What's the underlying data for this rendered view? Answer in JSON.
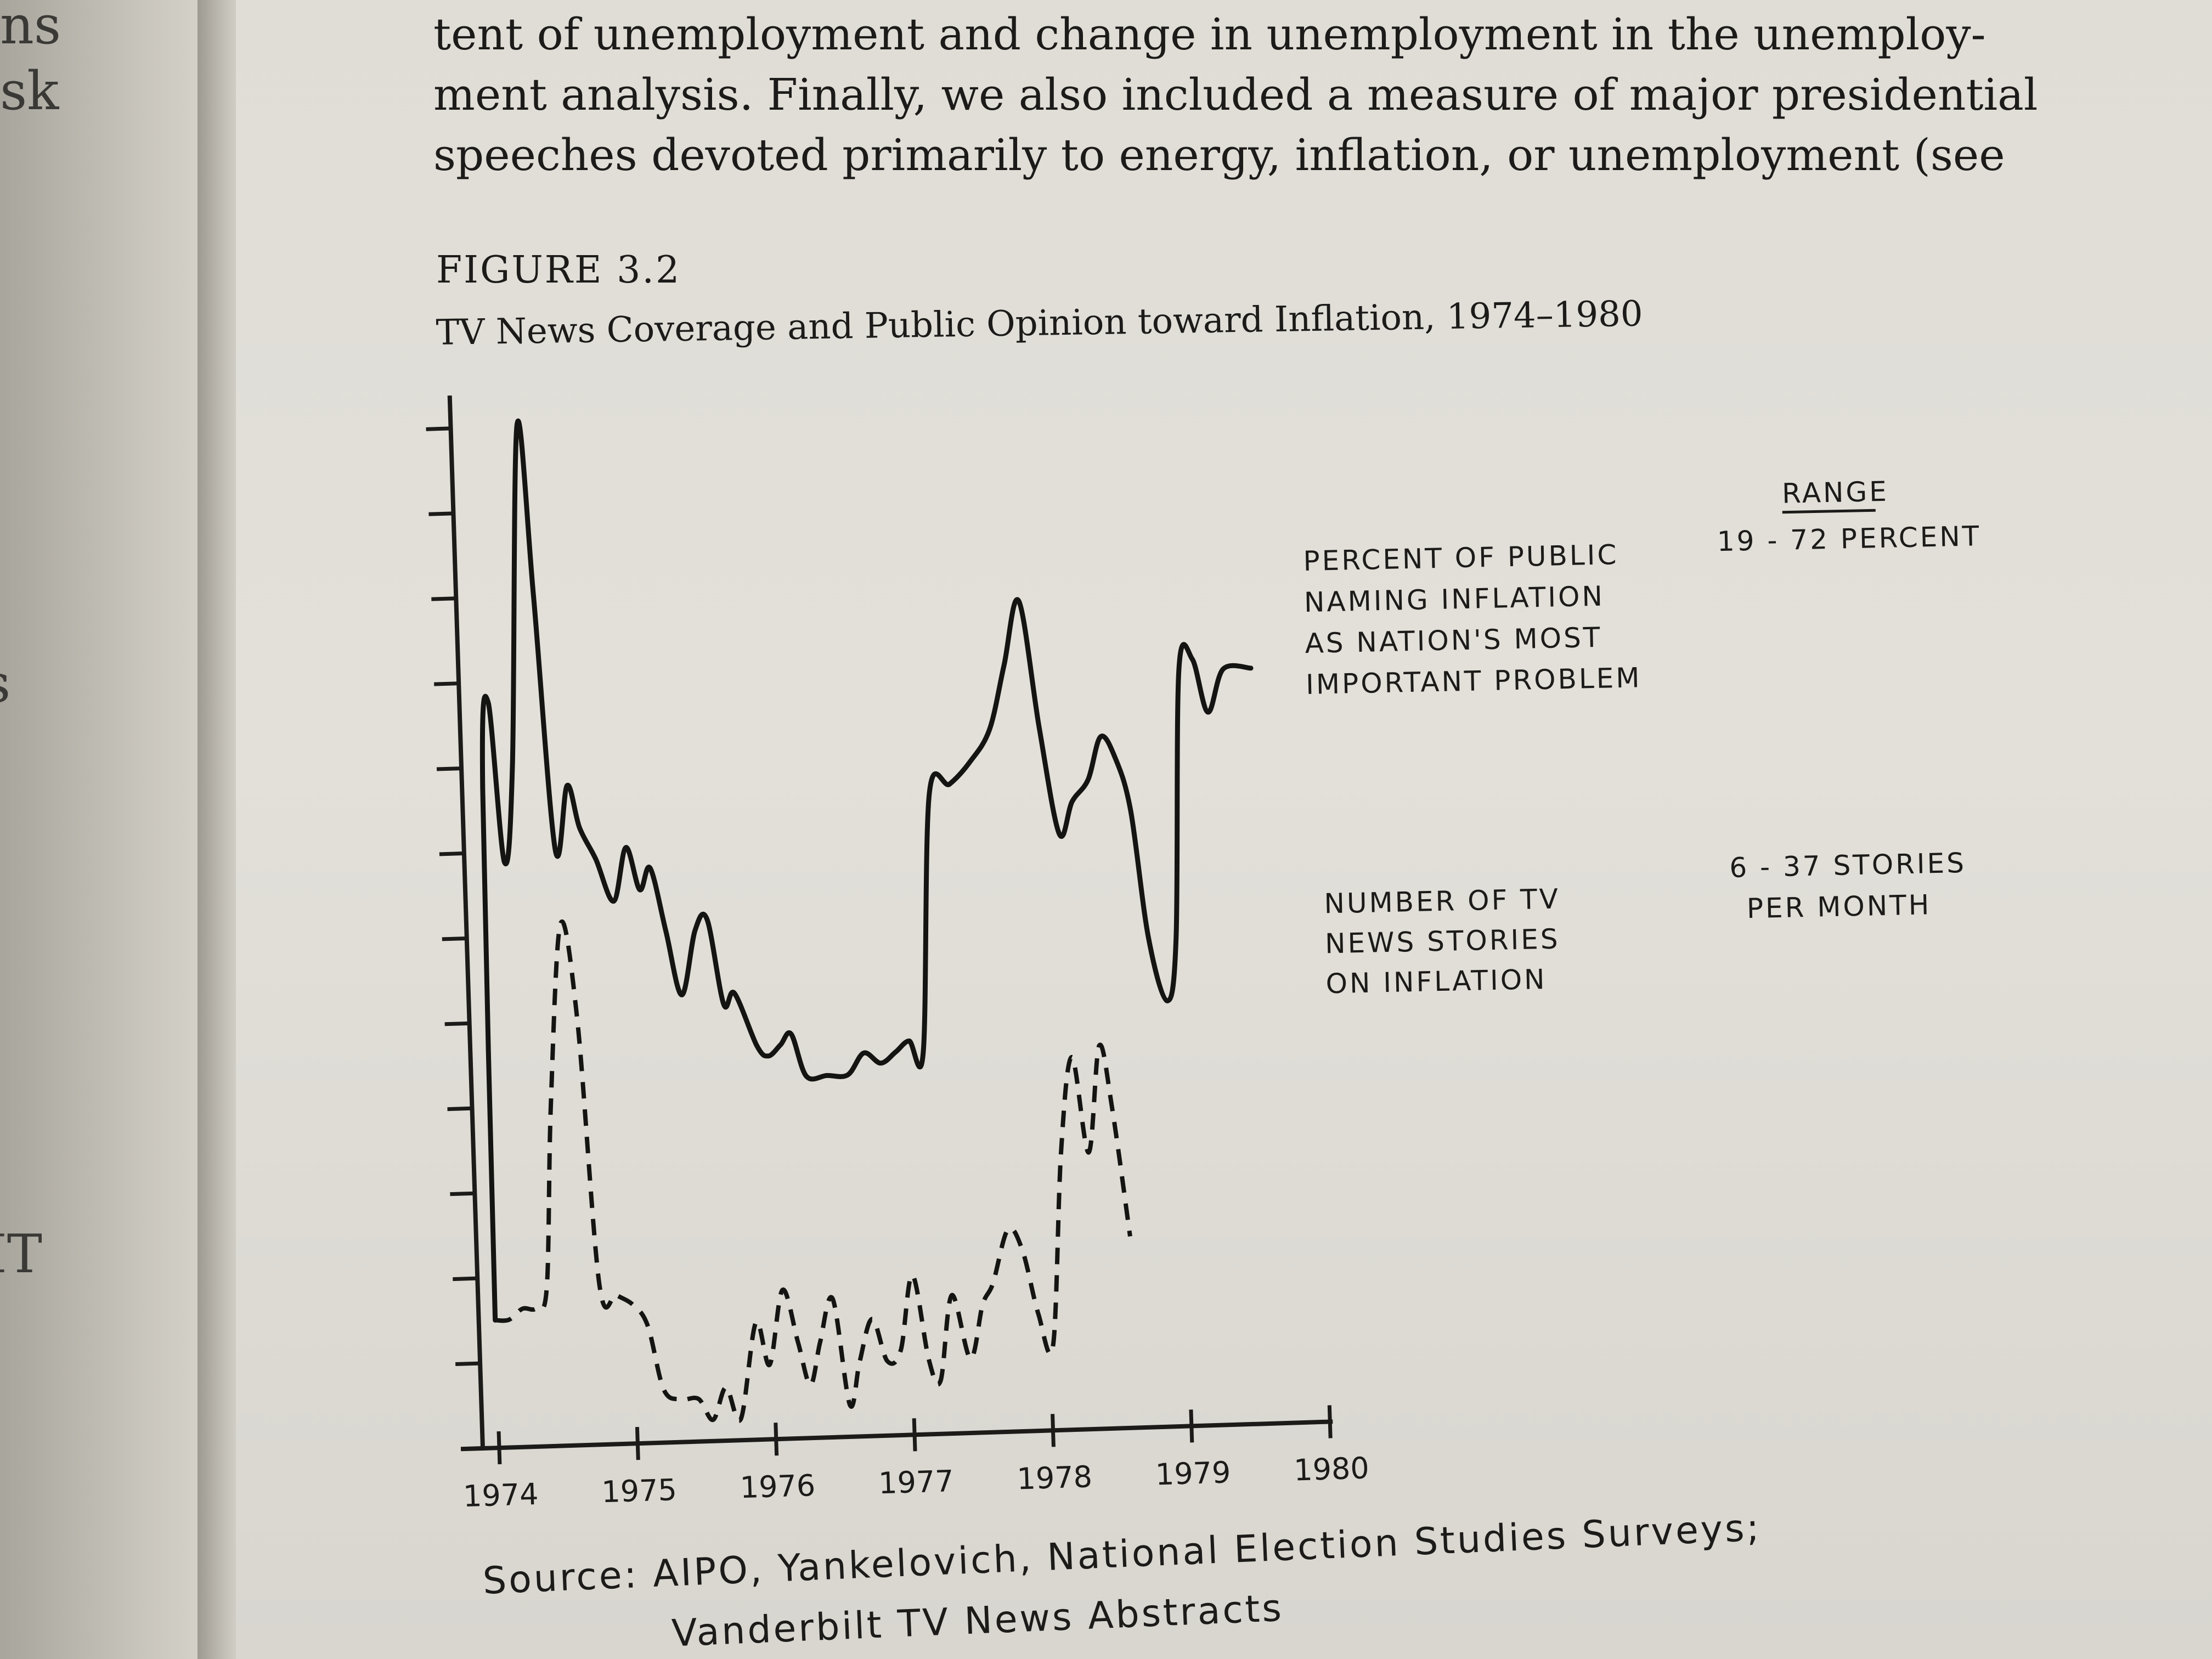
{
  "left_margin_fragments": [
    "ns",
    "sk",
    "s",
    "IT"
  ],
  "body_text": [
    "tent of unemployment and change in unemployment in the unemploy-",
    "ment analysis. Finally, we also included a measure of major presidential",
    "speeches devoted primarily to energy, inflation, or unemployment (see"
  ],
  "figure_label": "FIGURE 3.2",
  "figure_title": "TV News Coverage and Public Opinion toward Inflation, 1974–1980",
  "source_lines": [
    "Source: AIPO, Yankelovich, National Election Studies Surveys;",
    "Vanderbilt TV News Abstracts"
  ],
  "chart_data": {
    "type": "line",
    "x_ticks": [
      "1974",
      "1975",
      "1976",
      "1977",
      "1978",
      "1979",
      "1980"
    ],
    "xlim": [
      1974,
      1980
    ],
    "y_axis": {
      "labeled": false,
      "minor_ticks": 12
    },
    "grid": false,
    "range_header": "RANGE",
    "series": [
      {
        "name_lines": [
          "PERCENT OF PUBLIC",
          "NAMING INFLATION",
          "AS NATION'S MOST",
          "IMPORTANT PROBLEM"
        ],
        "range_lines": [
          "19 - 72 PERCENT"
        ],
        "style": "solid",
        "points": [
          [
            1974.0,
            0.12
          ],
          [
            1974.03,
            0.62
          ],
          [
            1974.09,
            0.7
          ],
          [
            1974.17,
            0.55
          ],
          [
            1974.25,
            0.64
          ],
          [
            1974.36,
            0.96
          ],
          [
            1974.44,
            0.8
          ],
          [
            1974.54,
            0.56
          ],
          [
            1974.64,
            0.62
          ],
          [
            1974.72,
            0.58
          ],
          [
            1974.83,
            0.55
          ],
          [
            1974.95,
            0.51
          ],
          [
            1975.05,
            0.56
          ],
          [
            1975.14,
            0.52
          ],
          [
            1975.22,
            0.54
          ],
          [
            1975.32,
            0.48
          ],
          [
            1975.42,
            0.42
          ],
          [
            1975.53,
            0.48
          ],
          [
            1975.62,
            0.49
          ],
          [
            1975.72,
            0.41
          ],
          [
            1975.8,
            0.42
          ],
          [
            1975.95,
            0.37
          ],
          [
            1976.03,
            0.36
          ],
          [
            1976.12,
            0.37
          ],
          [
            1976.2,
            0.38
          ],
          [
            1976.3,
            0.34
          ],
          [
            1976.45,
            0.34
          ],
          [
            1976.6,
            0.34
          ],
          [
            1976.72,
            0.36
          ],
          [
            1976.84,
            0.35
          ],
          [
            1976.95,
            0.36
          ],
          [
            1977.05,
            0.37
          ],
          [
            1977.15,
            0.36
          ],
          [
            1977.25,
            0.6
          ],
          [
            1977.4,
            0.61
          ],
          [
            1977.55,
            0.63
          ],
          [
            1977.7,
            0.66
          ],
          [
            1977.82,
            0.72
          ],
          [
            1977.94,
            0.78
          ],
          [
            1978.06,
            0.66
          ],
          [
            1978.18,
            0.56
          ],
          [
            1978.28,
            0.59
          ],
          [
            1978.4,
            0.61
          ],
          [
            1978.5,
            0.65
          ],
          [
            1978.6,
            0.63
          ],
          [
            1978.7,
            0.58
          ],
          [
            1978.8,
            0.46
          ],
          [
            1978.92,
            0.4
          ],
          [
            1979.0,
            0.46
          ],
          [
            1979.08,
            0.71
          ],
          [
            1979.18,
            0.72
          ],
          [
            1979.28,
            0.67
          ],
          [
            1979.4,
            0.71
          ],
          [
            1979.6,
            0.71
          ]
        ]
      },
      {
        "name_lines": [
          "NUMBER OF TV",
          "NEWS STORIES",
          "ON INFLATION"
        ],
        "range_lines": [
          "6 - 37 STORIES",
          "PER MONTH"
        ],
        "style": "dashed",
        "points": [
          [
            1974.0,
            0.12
          ],
          [
            1974.1,
            0.12
          ],
          [
            1974.2,
            0.13
          ],
          [
            1974.3,
            0.13
          ],
          [
            1974.38,
            0.15
          ],
          [
            1974.45,
            0.32
          ],
          [
            1974.56,
            0.49
          ],
          [
            1974.66,
            0.4
          ],
          [
            1974.76,
            0.15
          ],
          [
            1974.88,
            0.14
          ],
          [
            1975.0,
            0.13
          ],
          [
            1975.1,
            0.11
          ],
          [
            1975.2,
            0.05
          ],
          [
            1975.32,
            0.04
          ],
          [
            1975.45,
            0.04
          ],
          [
            1975.55,
            0.02
          ],
          [
            1975.65,
            0.05
          ],
          [
            1975.75,
            0.02
          ],
          [
            1975.88,
            0.11
          ],
          [
            1975.97,
            0.07
          ],
          [
            1976.08,
            0.14
          ],
          [
            1976.18,
            0.09
          ],
          [
            1976.26,
            0.05
          ],
          [
            1976.34,
            0.09
          ],
          [
            1976.44,
            0.13
          ],
          [
            1976.54,
            0.03
          ],
          [
            1976.62,
            0.07
          ],
          [
            1976.72,
            0.11
          ],
          [
            1976.82,
            0.07
          ],
          [
            1976.92,
            0.08
          ],
          [
            1977.02,
            0.15
          ],
          [
            1977.12,
            0.07
          ],
          [
            1977.2,
            0.05
          ],
          [
            1977.3,
            0.13
          ],
          [
            1977.42,
            0.07
          ],
          [
            1977.52,
            0.12
          ],
          [
            1977.6,
            0.14
          ],
          [
            1977.72,
            0.19
          ],
          [
            1977.82,
            0.17
          ],
          [
            1977.92,
            0.11
          ],
          [
            1978.02,
            0.08
          ],
          [
            1978.12,
            0.26
          ],
          [
            1978.22,
            0.35
          ],
          [
            1978.32,
            0.26
          ],
          [
            1978.42,
            0.36
          ],
          [
            1978.5,
            0.3
          ],
          [
            1978.6,
            0.18
          ]
        ]
      }
    ]
  }
}
